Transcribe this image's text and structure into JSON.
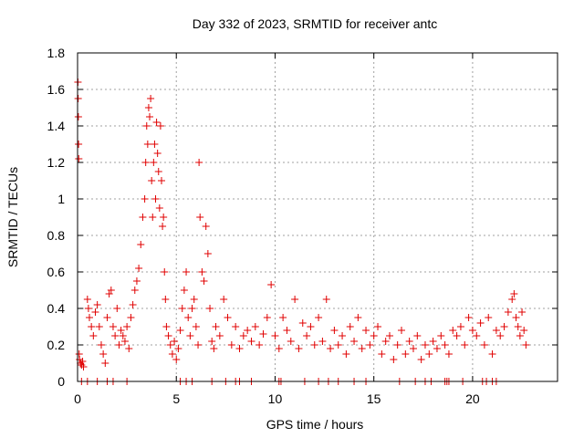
{
  "chart_data": {
    "type": "scatter",
    "title": "Day 332 of 2023, SRMTID for receiver antc",
    "xlabel": "GPS time / hours",
    "ylabel": "SRMTID / TECUs",
    "xlim": [
      0,
      24.3
    ],
    "ylim": [
      0,
      1.8
    ],
    "xticks": [
      0,
      5,
      10,
      15,
      20
    ],
    "xtick_labels": [
      "0",
      "5",
      "10",
      "15",
      "20"
    ],
    "yticks": [
      0,
      0.2,
      0.4,
      0.6,
      0.8,
      1.0,
      1.2,
      1.4,
      1.6,
      1.8
    ],
    "ytick_labels": [
      "0",
      "0.2",
      "0.4",
      "0.6",
      "0.8",
      "1",
      "1.2",
      "1.4",
      "1.6",
      "1.8"
    ],
    "grid": true,
    "marker": "plus",
    "color": "#e00000",
    "series": [
      {
        "name": "SRMTID",
        "points": [
          [
            0.02,
            1.64
          ],
          [
            0.03,
            1.55
          ],
          [
            0.04,
            1.45
          ],
          [
            0.05,
            1.3
          ],
          [
            0.06,
            1.22
          ],
          [
            0.08,
            0.15
          ],
          [
            0.1,
            0.12
          ],
          [
            0.15,
            0.1
          ],
          [
            0.2,
            0.09
          ],
          [
            0.25,
            0.11
          ],
          [
            0.3,
            0.08
          ],
          [
            0.5,
            0.45
          ],
          [
            0.55,
            0.4
          ],
          [
            0.6,
            0.35
          ],
          [
            0.7,
            0.3
          ],
          [
            0.8,
            0.25
          ],
          [
            0.9,
            0.38
          ],
          [
            1.0,
            0.42
          ],
          [
            1.1,
            0.3
          ],
          [
            1.2,
            0.2
          ],
          [
            1.3,
            0.15
          ],
          [
            1.4,
            0.1
          ],
          [
            1.5,
            0.35
          ],
          [
            1.6,
            0.48
          ],
          [
            1.7,
            0.5
          ],
          [
            1.8,
            0.3
          ],
          [
            1.9,
            0.25
          ],
          [
            2.0,
            0.4
          ],
          [
            2.1,
            0.2
          ],
          [
            2.2,
            0.28
          ],
          [
            2.3,
            0.25
          ],
          [
            2.4,
            0.22
          ],
          [
            2.5,
            0.3
          ],
          [
            2.6,
            0.18
          ],
          [
            2.7,
            0.35
          ],
          [
            2.8,
            0.42
          ],
          [
            2.9,
            0.5
          ],
          [
            3.0,
            0.55
          ],
          [
            3.1,
            0.62
          ],
          [
            3.2,
            0.75
          ],
          [
            3.3,
            0.9
          ],
          [
            3.4,
            1.0
          ],
          [
            3.45,
            1.2
          ],
          [
            3.5,
            1.4
          ],
          [
            3.55,
            1.3
          ],
          [
            3.6,
            1.5
          ],
          [
            3.65,
            1.45
          ],
          [
            3.7,
            1.55
          ],
          [
            3.75,
            1.1
          ],
          [
            3.8,
            0.9
          ],
          [
            3.85,
            1.2
          ],
          [
            3.9,
            1.3
          ],
          [
            3.95,
            1.0
          ],
          [
            4.0,
            1.42
          ],
          [
            4.05,
            1.25
          ],
          [
            4.1,
            1.15
          ],
          [
            4.15,
            0.95
          ],
          [
            4.2,
            1.4
          ],
          [
            4.25,
            1.1
          ],
          [
            4.3,
            0.85
          ],
          [
            4.35,
            0.9
          ],
          [
            4.4,
            0.6
          ],
          [
            4.45,
            0.45
          ],
          [
            4.5,
            0.3
          ],
          [
            4.6,
            0.25
          ],
          [
            4.7,
            0.2
          ],
          [
            4.8,
            0.15
          ],
          [
            4.9,
            0.22
          ],
          [
            5.0,
            0.12
          ],
          [
            5.1,
            0.18
          ],
          [
            5.2,
            0.28
          ],
          [
            5.3,
            0.4
          ],
          [
            5.4,
            0.5
          ],
          [
            5.5,
            0.6
          ],
          [
            5.6,
            0.35
          ],
          [
            5.7,
            0.25
          ],
          [
            5.8,
            0.4
          ],
          [
            5.9,
            0.45
          ],
          [
            6.0,
            0.3
          ],
          [
            6.1,
            0.2
          ],
          [
            6.15,
            1.2
          ],
          [
            6.2,
            0.9
          ],
          [
            6.3,
            0.6
          ],
          [
            6.4,
            0.55
          ],
          [
            6.5,
            0.85
          ],
          [
            6.6,
            0.7
          ],
          [
            6.7,
            0.4
          ],
          [
            6.8,
            0.22
          ],
          [
            6.9,
            0.18
          ],
          [
            7.0,
            0.3
          ],
          [
            7.2,
            0.25
          ],
          [
            7.4,
            0.45
          ],
          [
            7.6,
            0.35
          ],
          [
            7.8,
            0.2
          ],
          [
            8.0,
            0.3
          ],
          [
            8.2,
            0.18
          ],
          [
            8.4,
            0.25
          ],
          [
            8.6,
            0.28
          ],
          [
            8.8,
            0.22
          ],
          [
            9.0,
            0.3
          ],
          [
            9.2,
            0.2
          ],
          [
            9.4,
            0.26
          ],
          [
            9.6,
            0.35
          ],
          [
            9.8,
            0.53
          ],
          [
            10.0,
            0.25
          ],
          [
            10.2,
            0.18
          ],
          [
            10.4,
            0.35
          ],
          [
            10.6,
            0.28
          ],
          [
            10.8,
            0.22
          ],
          [
            11.0,
            0.45
          ],
          [
            11.2,
            0.18
          ],
          [
            11.4,
            0.32
          ],
          [
            11.6,
            0.25
          ],
          [
            11.8,
            0.3
          ],
          [
            12.0,
            0.2
          ],
          [
            12.2,
            0.35
          ],
          [
            12.4,
            0.22
          ],
          [
            12.6,
            0.45
          ],
          [
            12.8,
            0.18
          ],
          [
            13.0,
            0.28
          ],
          [
            13.2,
            0.2
          ],
          [
            13.4,
            0.25
          ],
          [
            13.6,
            0.15
          ],
          [
            13.8,
            0.3
          ],
          [
            14.0,
            0.22
          ],
          [
            14.2,
            0.35
          ],
          [
            14.4,
            0.18
          ],
          [
            14.6,
            0.28
          ],
          [
            14.8,
            0.2
          ],
          [
            15.0,
            0.25
          ],
          [
            15.2,
            0.3
          ],
          [
            15.4,
            0.15
          ],
          [
            15.6,
            0.22
          ],
          [
            15.8,
            0.25
          ],
          [
            16.0,
            0.12
          ],
          [
            16.2,
            0.2
          ],
          [
            16.4,
            0.28
          ],
          [
            16.6,
            0.15
          ],
          [
            16.8,
            0.22
          ],
          [
            17.0,
            0.18
          ],
          [
            17.2,
            0.25
          ],
          [
            17.4,
            0.12
          ],
          [
            17.6,
            0.2
          ],
          [
            17.8,
            0.15
          ],
          [
            18.0,
            0.22
          ],
          [
            18.2,
            0.18
          ],
          [
            18.4,
            0.25
          ],
          [
            18.6,
            0.2
          ],
          [
            18.8,
            0.15
          ],
          [
            19.0,
            0.28
          ],
          [
            19.2,
            0.25
          ],
          [
            19.4,
            0.3
          ],
          [
            19.6,
            0.2
          ],
          [
            19.8,
            0.35
          ],
          [
            20.0,
            0.28
          ],
          [
            20.2,
            0.25
          ],
          [
            20.4,
            0.32
          ],
          [
            20.6,
            0.2
          ],
          [
            20.8,
            0.35
          ],
          [
            21.0,
            0.15
          ],
          [
            21.2,
            0.28
          ],
          [
            21.4,
            0.25
          ],
          [
            21.6,
            0.3
          ],
          [
            21.8,
            0.38
          ],
          [
            22.0,
            0.45
          ],
          [
            22.1,
            0.48
          ],
          [
            22.2,
            0.35
          ],
          [
            22.3,
            0.3
          ],
          [
            22.4,
            0.25
          ],
          [
            22.5,
            0.38
          ],
          [
            22.6,
            0.28
          ],
          [
            22.7,
            0.2
          ]
        ]
      },
      {
        "name": "zero-level markers",
        "points": [
          [
            0.2,
            0
          ],
          [
            0.5,
            0
          ],
          [
            1.0,
            0
          ],
          [
            1.5,
            0
          ],
          [
            1.8,
            0
          ],
          [
            2.5,
            0
          ],
          [
            5.2,
            0
          ],
          [
            5.5,
            0
          ],
          [
            5.8,
            0
          ],
          [
            6.8,
            0
          ],
          [
            7.5,
            0
          ],
          [
            8.0,
            0
          ],
          [
            8.2,
            0
          ],
          [
            8.8,
            0
          ],
          [
            10.2,
            0
          ],
          [
            10.3,
            0
          ],
          [
            11.5,
            0
          ],
          [
            12.2,
            0
          ],
          [
            12.7,
            0
          ],
          [
            13.2,
            0
          ],
          [
            14.0,
            0
          ],
          [
            14.6,
            0
          ],
          [
            16.3,
            0
          ],
          [
            17.1,
            0
          ],
          [
            17.6,
            0
          ],
          [
            17.9,
            0
          ],
          [
            18.6,
            0
          ],
          [
            18.7,
            0
          ],
          [
            18.8,
            0
          ],
          [
            19.5,
            0
          ],
          [
            20.5,
            0
          ],
          [
            20.7,
            0
          ],
          [
            21.0,
            0
          ],
          [
            21.2,
            0
          ]
        ]
      }
    ]
  }
}
